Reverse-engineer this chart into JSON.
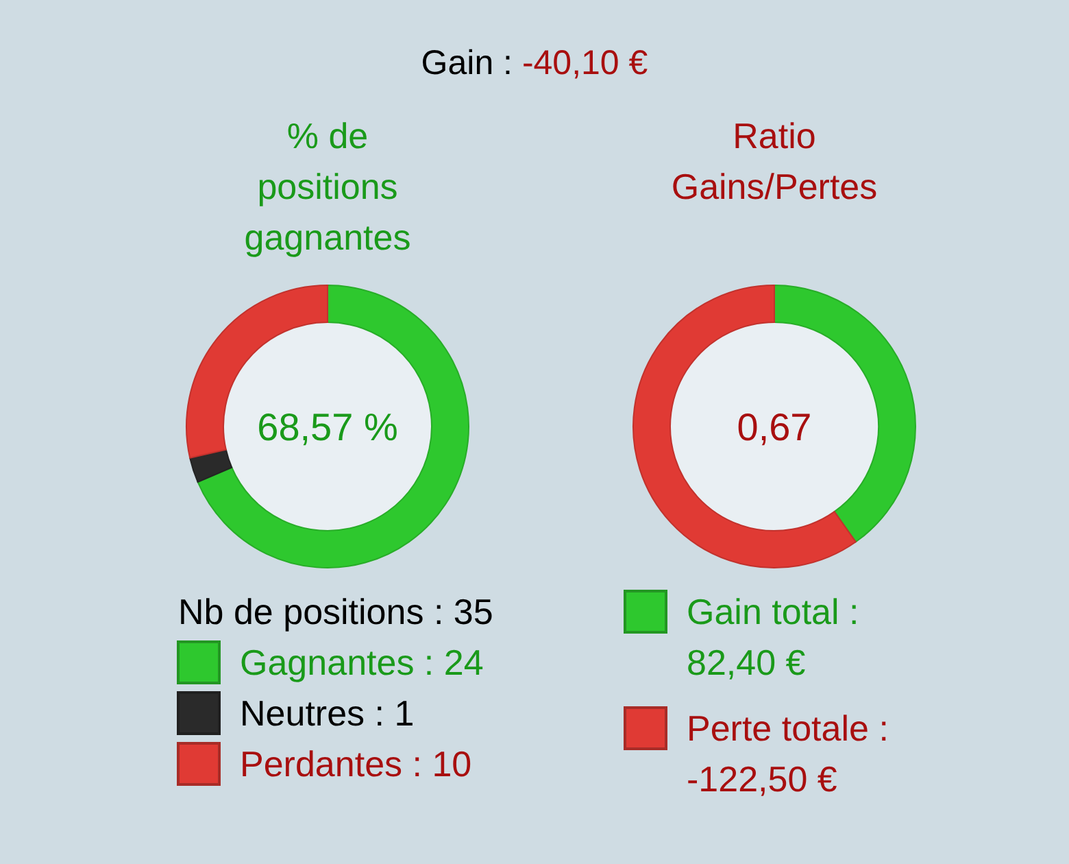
{
  "chart_data": [
    {
      "type": "other",
      "title": "Gain :",
      "annotations": [
        "-40,10 €"
      ]
    },
    {
      "type": "donut",
      "title": "% de positions gagnantes",
      "annotations": [
        "68,57 %"
      ],
      "legend_title": "Nb de positions : 35",
      "legend": "bottom",
      "categories": [
        "Gagnantes",
        "Neutres",
        "Perdantes"
      ],
      "values": [
        24,
        1,
        10
      ],
      "value_labels": [
        "24",
        "1",
        "10"
      ],
      "colors": [
        "#2ec82e",
        "#2a2a2a",
        "#e03a34"
      ]
    },
    {
      "type": "donut",
      "title": "Ratio Gains/Pertes",
      "annotations": [
        "0,67"
      ],
      "legend": "bottom",
      "categories": [
        "Gain total : 82,40 €",
        "Perte totale : -122,50 €"
      ],
      "values": [
        82.4,
        122.5
      ],
      "colors": [
        "#2ec82e",
        "#e03a34"
      ]
    }
  ]
}
